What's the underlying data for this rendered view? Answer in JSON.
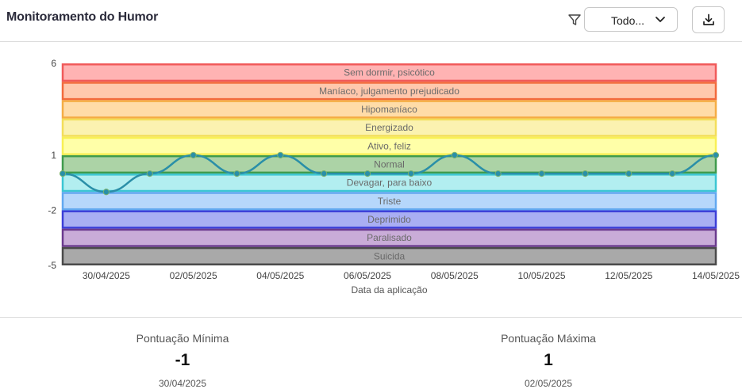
{
  "header": {
    "title": "Monitoramento do Humor",
    "filter_value": "Todo...",
    "icons": {
      "filter": "filter-icon",
      "dropdown": "chevron-down-icon",
      "download": "download-icon"
    }
  },
  "chart_data": {
    "type": "line",
    "xlabel": "Data da aplicação",
    "ylabel": "",
    "ylim": [
      -5,
      6
    ],
    "yticks": [
      "6",
      "1",
      "-2",
      "-5"
    ],
    "xtick_labels": [
      "30/04/2025",
      "02/05/2025",
      "04/05/2025",
      "06/05/2025",
      "08/05/2025",
      "10/05/2025",
      "12/05/2025",
      "14/05/2025"
    ],
    "x": [
      "29/04/2025",
      "30/04/2025",
      "01/05/2025",
      "02/05/2025",
      "03/05/2025",
      "04/05/2025",
      "05/05/2025",
      "06/05/2025",
      "07/05/2025",
      "08/05/2025",
      "09/05/2025",
      "10/05/2025",
      "11/05/2025",
      "12/05/2025",
      "13/05/2025",
      "14/05/2025"
    ],
    "series": [
      {
        "values": [
          0,
          -1,
          0,
          1,
          0,
          1,
          0,
          0,
          0,
          1,
          0,
          0,
          0,
          0,
          0,
          1
        ],
        "color": "#2a8fa8"
      }
    ],
    "bands": [
      {
        "label": "Sem dormir, psicótico",
        "fill": "#ffb3b3",
        "stroke": "#f05a5a"
      },
      {
        "label": "Maníaco, julgamento prejudicado",
        "fill": "#ffc8ad",
        "stroke": "#f26a3d"
      },
      {
        "label": "Hipomaníaco",
        "fill": "#ffdca8",
        "stroke": "#f5ad45"
      },
      {
        "label": "Energizado",
        "fill": "#fbf2b0",
        "stroke": "#f3de5a"
      },
      {
        "label": "Ativo, feliz",
        "fill": "#ffffa8",
        "stroke": "#f8f055"
      },
      {
        "label": "Normal",
        "fill": "#acd3a6",
        "stroke": "#3f9b4c"
      },
      {
        "label": "Devagar, para baixo",
        "fill": "#b2eef0",
        "stroke": "#3cc6d3"
      },
      {
        "label": "Triste",
        "fill": "#b6d7fb",
        "stroke": "#62a8f0"
      },
      {
        "label": "Deprimido",
        "fill": "#a9aef3",
        "stroke": "#3c3ed8"
      },
      {
        "label": "Paralisado",
        "fill": "#c9acd8",
        "stroke": "#6b3a8e"
      },
      {
        "label": "Suicida",
        "fill": "#a9a9a9",
        "stroke": "#4a4a4a"
      }
    ],
    "grid": false,
    "legend": "none"
  },
  "stats": {
    "min": {
      "label": "Pontuação Mínima",
      "value": "-1",
      "date": "30/04/2025"
    },
    "max": {
      "label": "Pontuação Máxima",
      "value": "1",
      "date": "02/05/2025"
    }
  }
}
